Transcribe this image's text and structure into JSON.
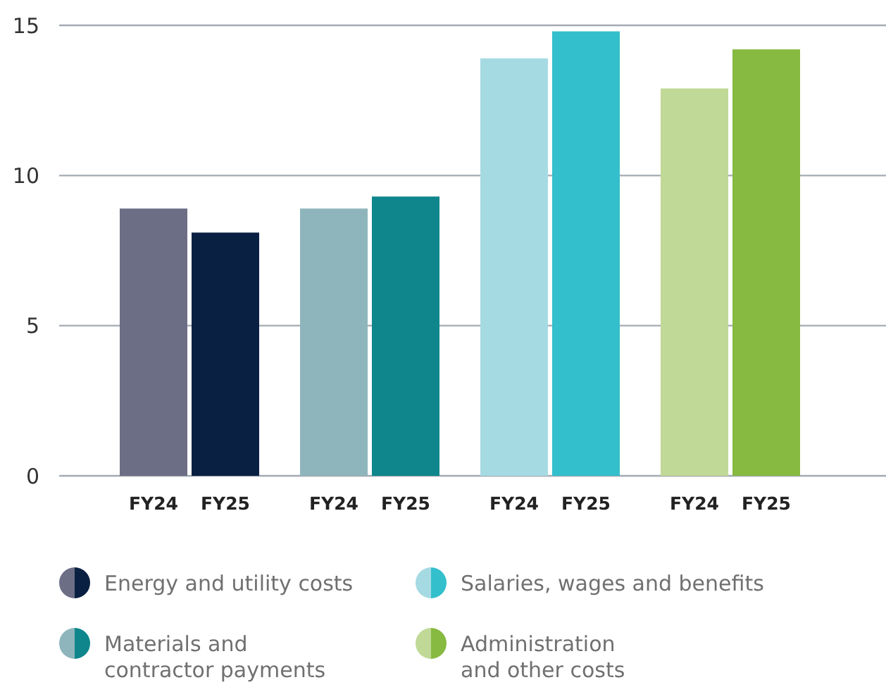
{
  "chart_data": {
    "type": "bar",
    "categories": [
      "FY24",
      "FY25",
      "FY24",
      "FY25",
      "FY24",
      "FY25",
      "FY24",
      "FY25"
    ],
    "series": [
      {
        "name": "Energy and utility costs",
        "colors": [
          "#6c6e85",
          "#0a2042",
          null,
          null,
          null,
          null,
          null,
          null
        ],
        "values": [
          8.9,
          8.1,
          null,
          null,
          null,
          null,
          null,
          null
        ]
      },
      {
        "name": "Materials and\ncontractor payments",
        "colors": [
          null,
          null,
          "#8fb5bc",
          "#0e868c",
          null,
          null,
          null,
          null
        ],
        "values": [
          null,
          null,
          8.9,
          9.3,
          null,
          null,
          null,
          null
        ]
      },
      {
        "name": "Salaries, wages and benefits",
        "colors": [
          null,
          null,
          null,
          null,
          "#a6dae3",
          "#33bfcc",
          null,
          null
        ],
        "values": [
          null,
          null,
          null,
          null,
          13.9,
          14.8,
          null,
          null
        ]
      },
      {
        "name": "Administration\nand other costs",
        "colors": [
          null,
          null,
          null,
          null,
          null,
          null,
          "#c0d997",
          "#86ba40"
        ],
        "values": [
          null,
          null,
          null,
          null,
          null,
          null,
          12.9,
          14.2
        ]
      }
    ],
    "ylim": [
      0,
      15
    ],
    "yticks": [
      0,
      5,
      10,
      15
    ],
    "grid": "y",
    "legend": "bottom"
  }
}
